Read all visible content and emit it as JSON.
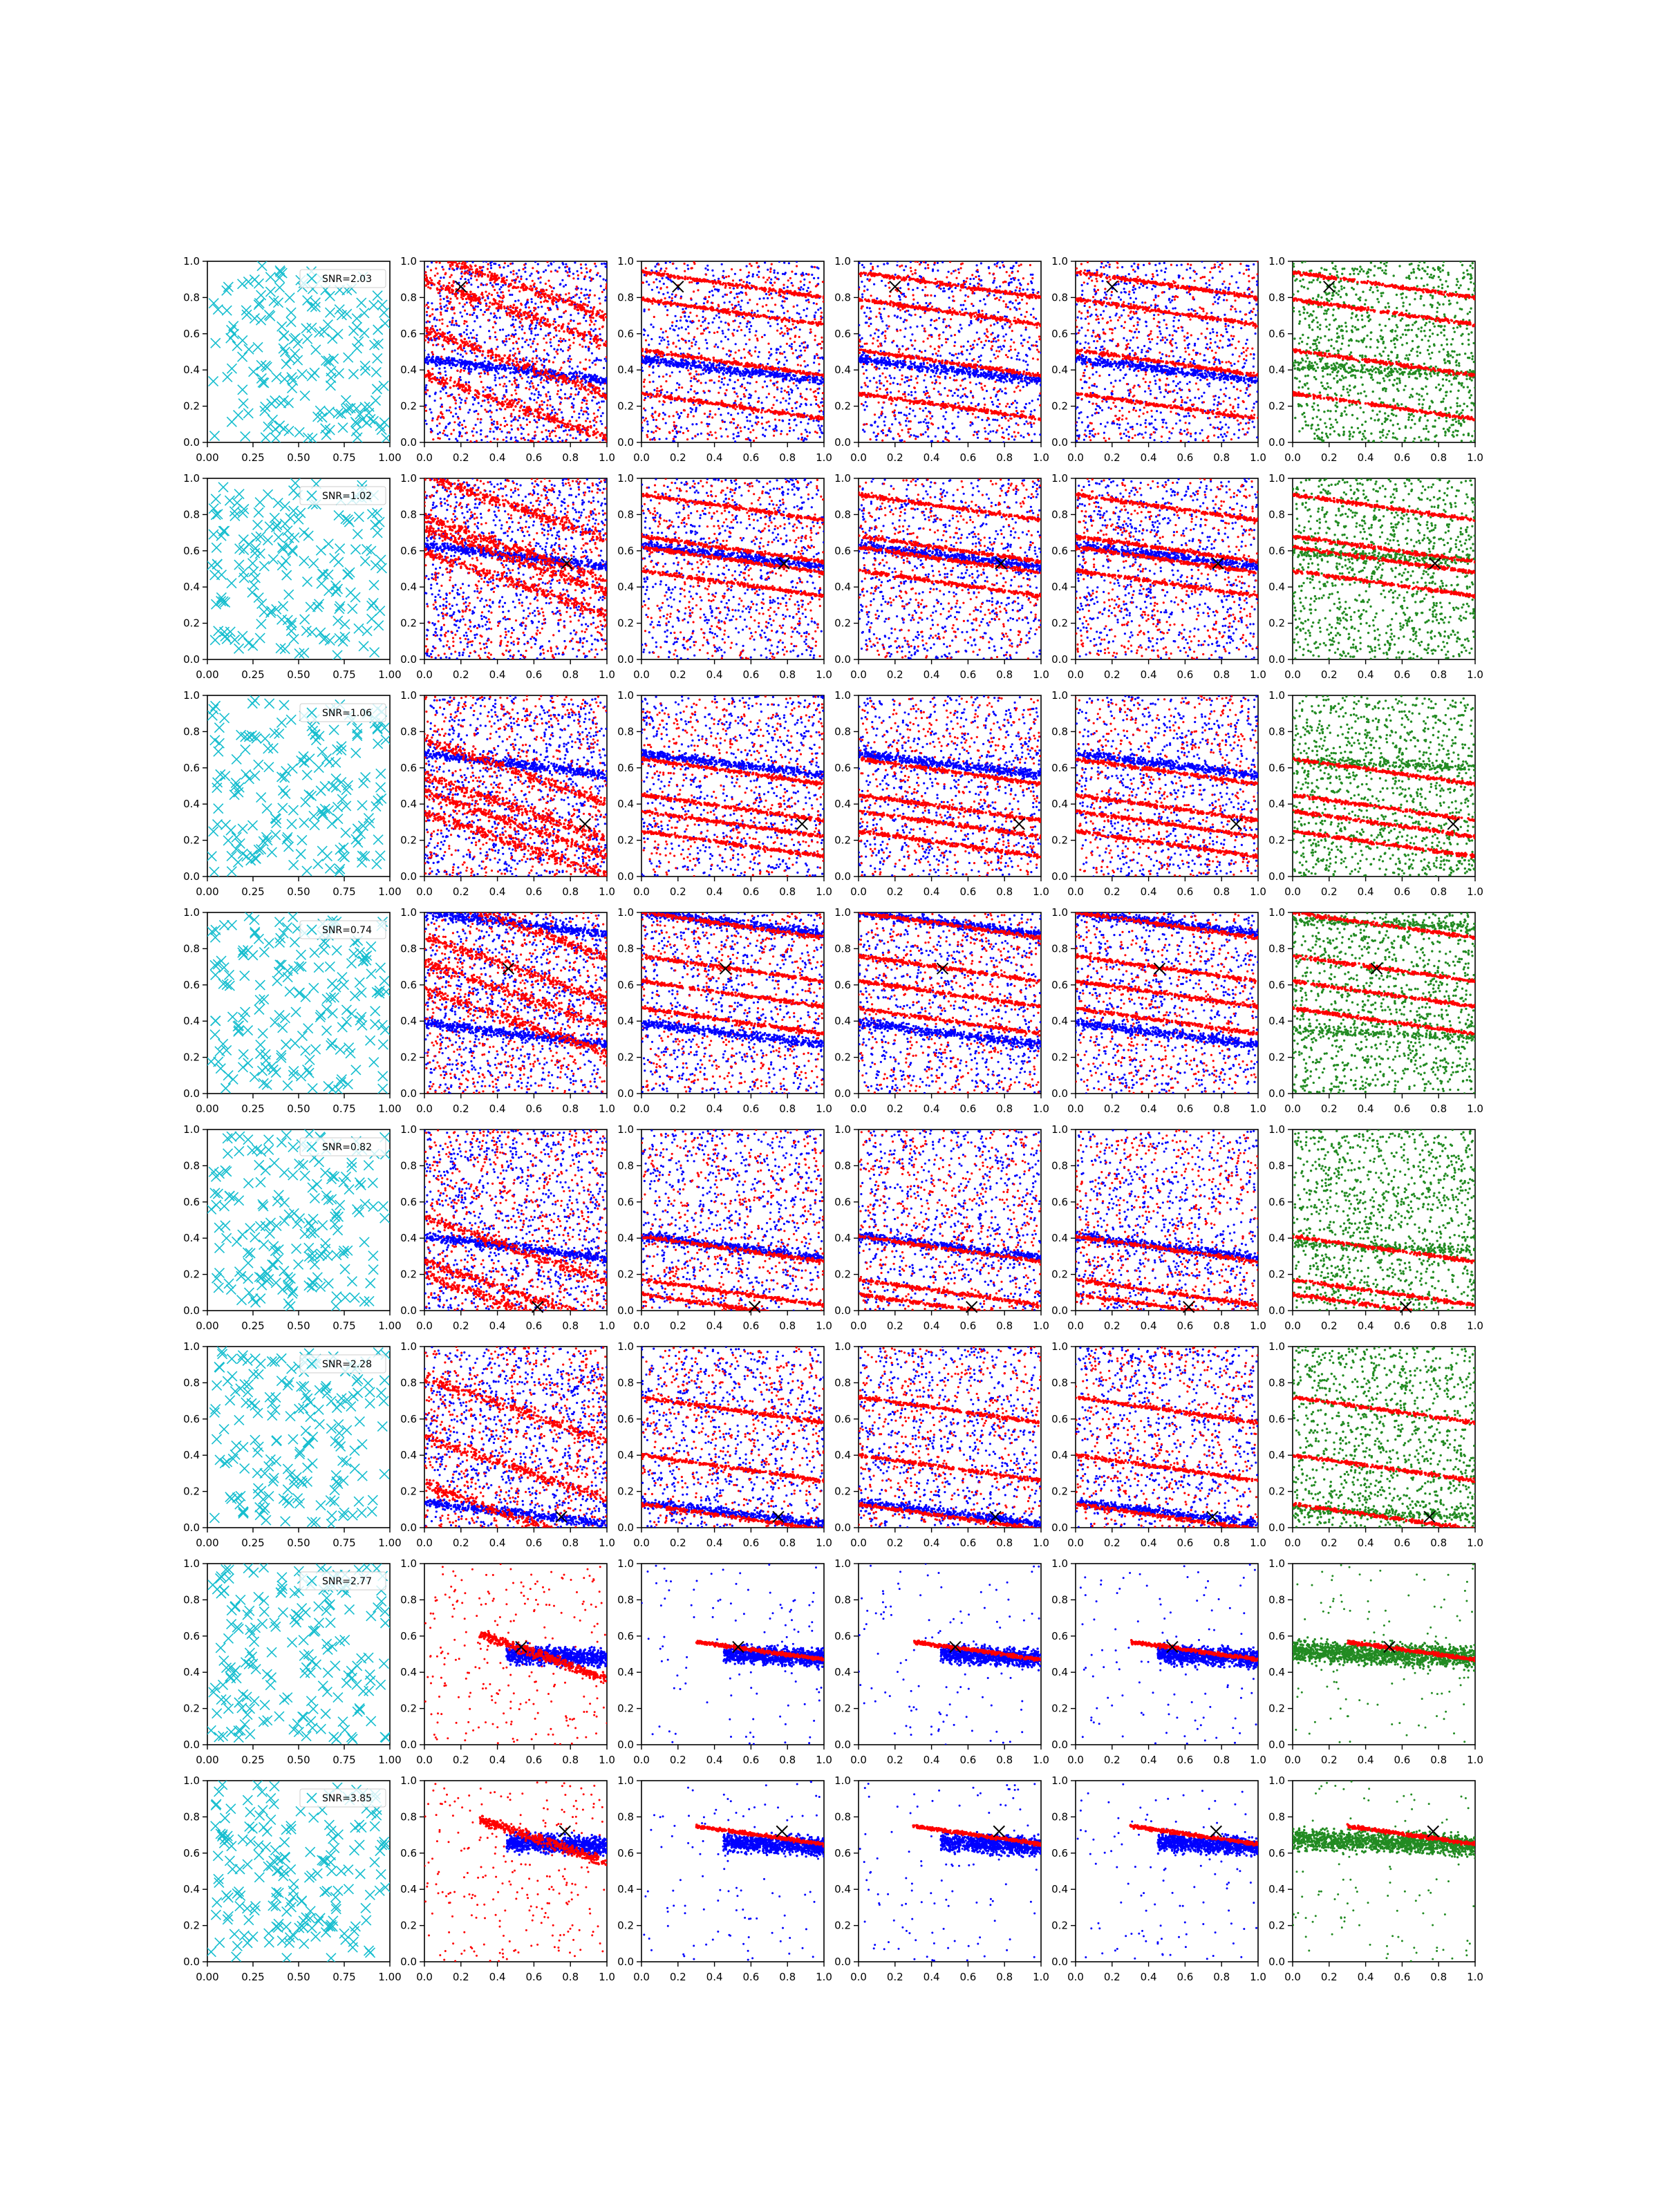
{
  "figure": {
    "layout": {
      "rows": 8,
      "cols": 6
    },
    "colors": {
      "random_marker": "#17becf",
      "blue": "#0000ff",
      "red": "#ff0000",
      "green": "#228b22",
      "target": "#000000"
    },
    "legend_marker_label_prefix": "SNR="
  },
  "chart_data": {
    "type": "scatter",
    "xlim": [
      0,
      1
    ],
    "ylim": [
      0,
      1
    ],
    "grid": false,
    "first_column": {
      "xticks": [
        "0.00",
        "0.25",
        "0.50",
        "0.75",
        "1.00"
      ],
      "yticks": [
        "0.0",
        "0.2",
        "0.4",
        "0.6",
        "0.8",
        "1.0"
      ],
      "marker": "x",
      "legend_location": "upper right"
    },
    "other_columns": {
      "xticks": [
        "0.0",
        "0.2",
        "0.4",
        "0.6",
        "0.8",
        "1.0"
      ],
      "yticks": [
        "0.0",
        "0.2",
        "0.4",
        "0.6",
        "0.8",
        "1.0"
      ],
      "marker": "dot"
    },
    "rows": [
      {
        "snr_label": "SNR=2.03",
        "target": [
          0.2,
          0.86
        ],
        "lines_blue": [
          0.4
        ],
        "lines_red": [
          0.87,
          0.72,
          0.44,
          0.2
        ]
      },
      {
        "snr_label": "SNR=1.02",
        "target": [
          0.78,
          0.53
        ],
        "lines_blue": [
          0.57
        ],
        "lines_red": [
          0.84,
          0.61,
          0.55,
          0.42
        ]
      },
      {
        "snr_label": "SNR=1.06",
        "target": [
          0.88,
          0.29
        ],
        "lines_blue": [
          0.62
        ],
        "lines_red": [
          0.58,
          0.38,
          0.29,
          0.18
        ]
      },
      {
        "snr_label": "SNR=0.74",
        "target": [
          0.46,
          0.69
        ],
        "lines_blue": [
          0.33,
          0.94
        ],
        "lines_red": [
          0.93,
          0.69,
          0.55,
          0.4
        ]
      },
      {
        "snr_label": "SNR=0.82",
        "target": [
          0.62,
          0.02
        ],
        "lines_blue": [
          0.35
        ],
        "lines_red": [
          0.34,
          0.1,
          0.02
        ]
      },
      {
        "snr_label": "SNR=2.28",
        "target": [
          0.75,
          0.06
        ],
        "lines_blue": [
          0.08
        ],
        "lines_red": [
          0.65,
          0.33,
          0.06
        ]
      },
      {
        "snr_label": "SNR=2.77",
        "target": [
          0.53,
          0.54
        ],
        "lines_blue": [
          0.5
        ],
        "lines_red": [
          0.54
        ]
      },
      {
        "snr_label": "SNR=3.85",
        "target": [
          0.77,
          0.72
        ],
        "lines_blue": [
          0.66
        ],
        "lines_red": [
          0.72
        ]
      }
    ]
  }
}
